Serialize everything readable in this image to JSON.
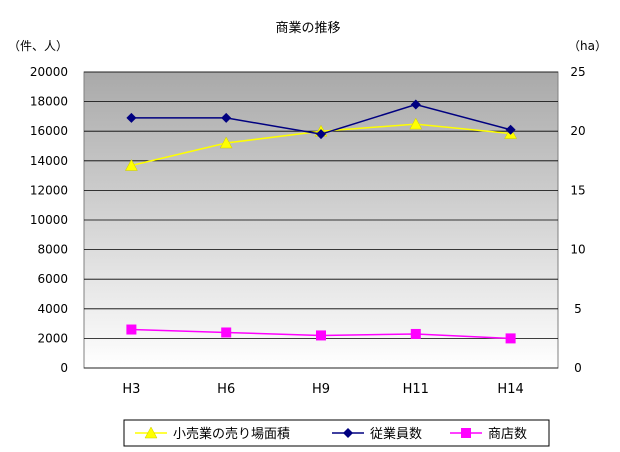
{
  "chart_data": {
    "type": "line",
    "title": "商業の推移",
    "ylabel_left": "（件、人）",
    "ylabel_right": "（ha）",
    "categories": [
      "H3",
      "H6",
      "H9",
      "H11",
      "H14"
    ],
    "y_left_range": [
      0,
      20000
    ],
    "y_left_ticks": [
      "0",
      "2000",
      "4000",
      "6000",
      "8000",
      "10000",
      "12000",
      "14000",
      "16000",
      "18000",
      "20000"
    ],
    "y_right_range": [
      0,
      25
    ],
    "y_right_ticks": [
      "0",
      "5",
      "10",
      "15",
      "20",
      "25"
    ],
    "grid": "horizontal",
    "legend_position": "bottom",
    "series": [
      {
        "name": "小売業の売り場面積",
        "axis": "right",
        "marker": "triangle",
        "color": "#ffff00",
        "values": [
          17.1,
          19.0,
          20.0,
          20.6,
          19.8
        ]
      },
      {
        "name": "従業員数",
        "axis": "left",
        "marker": "diamond",
        "color": "#000080",
        "values": [
          16900,
          16900,
          15800,
          17800,
          16100
        ]
      },
      {
        "name": "商店数",
        "axis": "left",
        "marker": "square",
        "color": "#ff00ff",
        "values": [
          2600,
          2400,
          2200,
          2300,
          2000
        ]
      }
    ]
  }
}
